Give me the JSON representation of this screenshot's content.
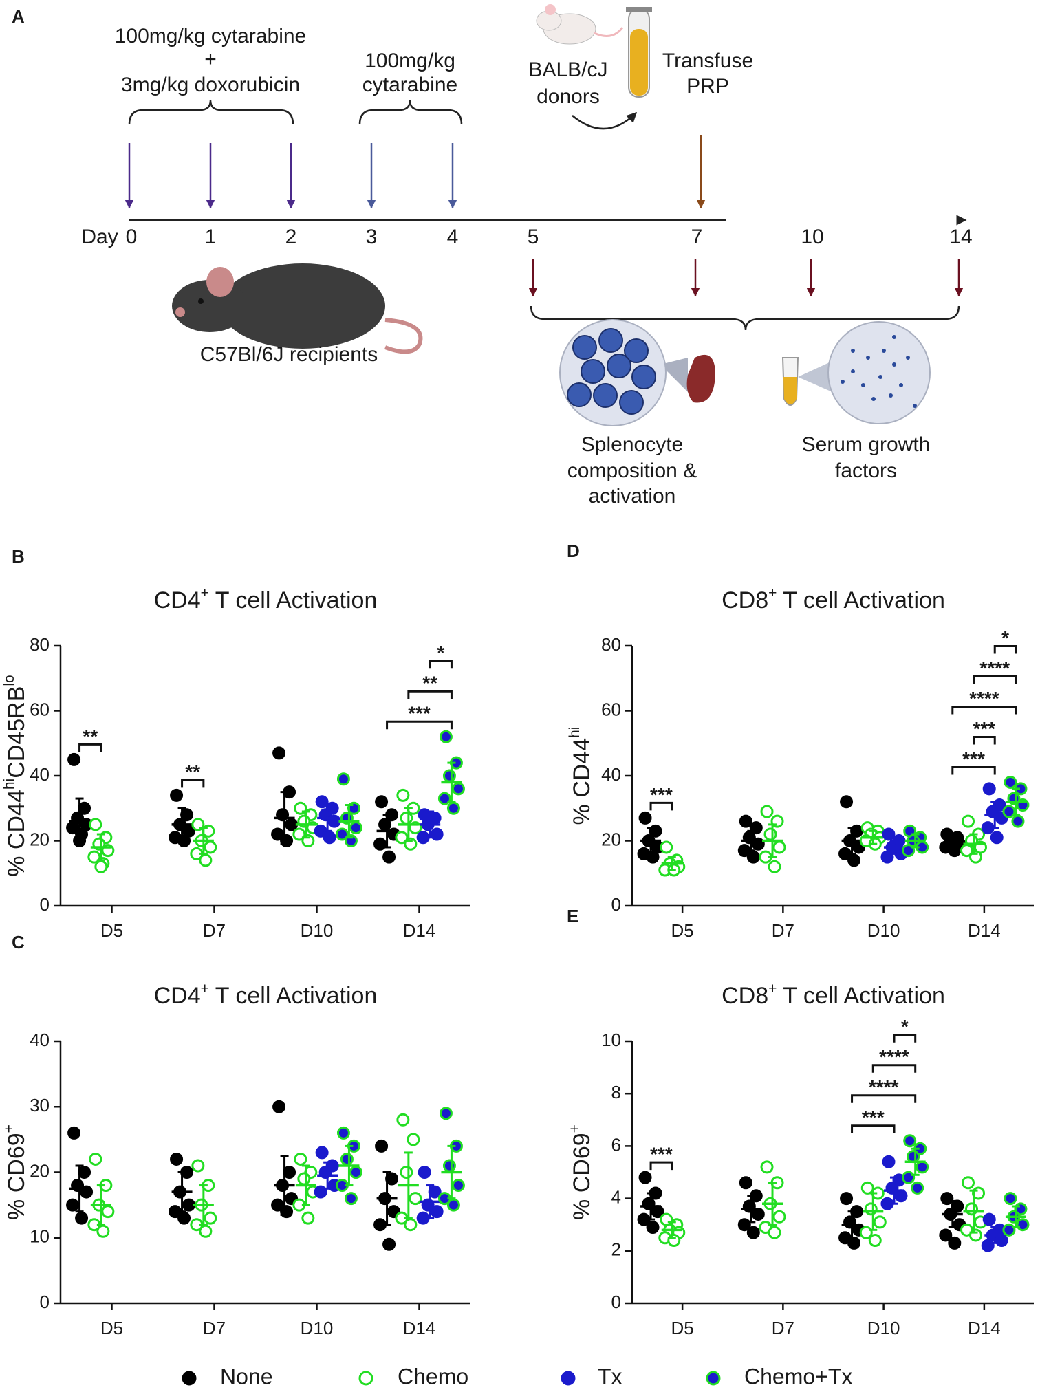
{
  "diagram": {
    "panel": "A",
    "dose1": [
      "100mg/kg cytarabine",
      "+",
      "3mg/kg doxorubicin"
    ],
    "dose2": [
      "100mg/kg",
      "cytarabine"
    ],
    "donor": [
      "BALB/cJ",
      "donors"
    ],
    "transfuse": [
      "Transfuse",
      "PRP"
    ],
    "day_label": "Day",
    "days": [
      0,
      1,
      2,
      3,
      4,
      5,
      7,
      10,
      14
    ],
    "recipients": "C57Bl/6J recipients",
    "readout1": [
      "Splenocyte",
      "composition &",
      "activation"
    ],
    "readout2": [
      "Serum growth",
      "factors"
    ]
  },
  "legend": [
    {
      "name": "None",
      "color": "#000000",
      "fill": "#000000"
    },
    {
      "name": "Chemo",
      "color": "#22dd22",
      "fill": "#ffffff"
    },
    {
      "name": "Tx",
      "color": "#1a1acc",
      "fill": "#1a1acc"
    },
    {
      "name": "Chemo+Tx",
      "color": "#22dd22",
      "fill": "#1a1acc"
    }
  ],
  "chart_data": [
    {
      "type": "dot",
      "panel": "B",
      "title": [
        {
          "text": "CD4"
        },
        {
          "text": "+",
          "sup": true
        },
        {
          "text": " T cell Activation"
        }
      ],
      "ylabel": [
        {
          "text": "% CD44"
        },
        {
          "text": "hi",
          "sup": true
        },
        {
          "text": "CD45RB"
        },
        {
          "text": "lo",
          "sup": true
        }
      ],
      "categories": [
        "D5",
        "D7",
        "D10",
        "D14"
      ],
      "ylim": [
        0,
        80
      ],
      "yticks": [
        0,
        20,
        40,
        60,
        80
      ],
      "series": [
        {
          "values": [
            26,
            25,
            27,
            23
          ],
          "errors": [
            7,
            5,
            8,
            5
          ],
          "points": [
            [
              45,
              30,
              27,
              25,
              24,
              22,
              20
            ],
            [
              34,
              28,
              25,
              23,
              21,
              20
            ],
            [
              47,
              35,
              28,
              25,
              22,
              20
            ],
            [
              32,
              28,
              25,
              22,
              19,
              15
            ]
          ]
        },
        {
          "values": [
            18,
            20,
            25,
            25
          ],
          "errors": [
            4,
            4,
            4,
            5
          ],
          "points": [
            [
              25,
              21,
              19,
              17,
              15,
              13,
              12
            ],
            [
              25,
              23,
              20,
              18,
              16,
              14
            ],
            [
              30,
              28,
              26,
              24,
              22,
              20
            ],
            [
              34,
              30,
              27,
              24,
              21,
              19
            ]
          ]
        },
        {
          "values": [
            null,
            null,
            27,
            25
          ],
          "errors": [
            null,
            null,
            4,
            4
          ],
          "points": [
            null,
            null,
            [
              32,
              30,
              28,
              26,
              23,
              21
            ],
            [
              28,
              27,
              25,
              22,
              21
            ]
          ]
        },
        {
          "values": [
            null,
            null,
            26,
            38
          ],
          "errors": [
            null,
            null,
            5,
            6
          ],
          "points": [
            null,
            null,
            [
              39,
              30,
              27,
              24,
              22,
              20
            ],
            [
              52,
              44,
              40,
              36,
              33,
              30
            ]
          ]
        }
      ],
      "brackets": [
        {
          "category": 0,
          "from": 0,
          "to": 1,
          "label": "**"
        },
        {
          "category": 1,
          "from": 0,
          "to": 1,
          "label": "**"
        },
        {
          "category": 3,
          "from": 0,
          "to": 3,
          "label": "***"
        },
        {
          "category": 3,
          "from": 1,
          "to": 3,
          "label": "**"
        },
        {
          "category": 3,
          "from": 2,
          "to": 3,
          "label": "*"
        }
      ]
    },
    {
      "type": "dot",
      "panel": "C",
      "title": [
        {
          "text": "CD4"
        },
        {
          "text": "+",
          "sup": true
        },
        {
          "text": " T cell Activation"
        }
      ],
      "ylabel": [
        {
          "text": "% CD69"
        },
        {
          "text": "+",
          "sup": true
        }
      ],
      "categories": [
        "D5",
        "D7",
        "D10",
        "D14"
      ],
      "ylim": [
        0,
        40
      ],
      "yticks": [
        0,
        10,
        20,
        30,
        40
      ],
      "series": [
        {
          "values": [
            17.5,
            17,
            18,
            16
          ],
          "errors": [
            3.5,
            3,
            4.5,
            4
          ],
          "points": [
            [
              26,
              20,
              18,
              17,
              15,
              13
            ],
            [
              22,
              20,
              17,
              15,
              14,
              13
            ],
            [
              30,
              20,
              18,
              16,
              15,
              14
            ],
            [
              24,
              19,
              16,
              14,
              12,
              9
            ]
          ]
        },
        {
          "values": [
            15,
            15,
            18,
            18
          ],
          "errors": [
            3,
            3,
            3,
            5
          ],
          "points": [
            [
              22,
              18,
              15,
              14,
              12,
              11
            ],
            [
              21,
              18,
              15,
              13,
              12,
              11
            ],
            [
              22,
              20,
              19,
              17,
              15,
              13
            ],
            [
              28,
              25,
              20,
              16,
              13,
              12
            ]
          ]
        },
        {
          "values": [
            null,
            null,
            19.5,
            15.5
          ],
          "errors": [
            null,
            null,
            2,
            2.5
          ],
          "points": [
            null,
            null,
            [
              23,
              21,
              20,
              18,
              17
            ],
            [
              20,
              17,
              15,
              14,
              13
            ]
          ]
        },
        {
          "values": [
            null,
            null,
            21,
            20
          ],
          "errors": [
            null,
            null,
            3,
            4
          ],
          "points": [
            null,
            null,
            [
              26,
              24,
              22,
              20,
              18,
              16
            ],
            [
              29,
              24,
              21,
              18,
              16,
              15
            ]
          ]
        }
      ],
      "brackets": []
    },
    {
      "type": "dot",
      "panel": "D",
      "title": [
        {
          "text": "CD8"
        },
        {
          "text": "+",
          "sup": true
        },
        {
          "text": " T cell Activation"
        }
      ],
      "ylabel": [
        {
          "text": "% CD44"
        },
        {
          "text": "hi",
          "sup": true
        }
      ],
      "categories": [
        "D5",
        "D7",
        "D10",
        "D14"
      ],
      "ylim": [
        0,
        80
      ],
      "yticks": [
        0,
        20,
        40,
        60,
        80
      ],
      "series": [
        {
          "values": [
            20,
            20,
            20,
            19
          ],
          "errors": [
            4,
            3,
            4,
            2
          ],
          "points": [
            [
              27,
              23,
              20,
              18,
              16,
              15
            ],
            [
              26,
              24,
              21,
              19,
              17,
              15
            ],
            [
              32,
              23,
              20,
              18,
              16,
              14
            ],
            [
              22,
              21,
              20,
              19,
              18,
              17
            ]
          ]
        },
        {
          "values": [
            13,
            20,
            21,
            19
          ],
          "errors": [
            2,
            5,
            2,
            3
          ],
          "points": [
            [
              18,
              14,
              13,
              12,
              11,
              11
            ],
            [
              29,
              26,
              22,
              18,
              15,
              12
            ],
            [
              24,
              23,
              22,
              21,
              20,
              19
            ],
            [
              26,
              22,
              20,
              18,
              17,
              15
            ]
          ]
        },
        {
          "values": [
            null,
            null,
            18,
            28
          ],
          "errors": [
            null,
            null,
            2,
            4
          ],
          "points": [
            null,
            null,
            [
              22,
              20,
              18,
              16,
              15
            ],
            [
              36,
              31,
              29,
              27,
              24,
              21
            ]
          ]
        },
        {
          "values": [
            null,
            null,
            20,
            32
          ],
          "errors": [
            null,
            null,
            2,
            4
          ],
          "points": [
            null,
            null,
            [
              23,
              21,
              20,
              18,
              17
            ],
            [
              38,
              36,
              33,
              31,
              29,
              26
            ]
          ]
        }
      ],
      "brackets": [
        {
          "category": 0,
          "from": 0,
          "to": 1,
          "label": "***"
        },
        {
          "category": 3,
          "from": 0,
          "to": 2,
          "label": "***"
        },
        {
          "category": 3,
          "from": 1,
          "to": 2,
          "label": "***"
        },
        {
          "category": 3,
          "from": 0,
          "to": 3,
          "label": "****"
        },
        {
          "category": 3,
          "from": 1,
          "to": 3,
          "label": "****"
        },
        {
          "category": 3,
          "from": 2,
          "to": 3,
          "label": "*"
        }
      ]
    },
    {
      "type": "dot",
      "panel": "E",
      "title": [
        {
          "text": "CD8"
        },
        {
          "text": "+",
          "sup": true
        },
        {
          "text": " T cell Activation"
        }
      ],
      "ylabel": [
        {
          "text": "% CD69"
        },
        {
          "text": "+",
          "sup": true
        }
      ],
      "categories": [
        "D5",
        "D7",
        "D10",
        "D14"
      ],
      "ylim": [
        0,
        10
      ],
      "yticks": [
        0,
        2,
        4,
        6,
        8,
        10
      ],
      "series": [
        {
          "values": [
            3.7,
            3.6,
            3.0,
            3.4
          ],
          "errors": [
            0.5,
            0.5,
            0.5,
            0.5
          ],
          "points": [
            [
              4.8,
              4.2,
              3.8,
              3.5,
              3.2,
              2.9
            ],
            [
              4.6,
              4.1,
              3.7,
              3.4,
              3.0,
              2.7
            ],
            [
              4.0,
              3.5,
              3.1,
              2.8,
              2.5,
              2.3
            ],
            [
              4.0,
              3.7,
              3.4,
              3.0,
              2.6,
              2.3
            ]
          ]
        },
        {
          "values": [
            2.8,
            3.8,
            3.5,
            3.5
          ],
          "errors": [
            0.3,
            0.8,
            0.7,
            0.8
          ],
          "points": [
            [
              3.2,
              3.0,
              2.8,
              2.7,
              2.5,
              2.4
            ],
            [
              5.2,
              4.6,
              3.8,
              3.3,
              2.9,
              2.7
            ],
            [
              4.4,
              4.2,
              3.6,
              3.1,
              2.7,
              2.4
            ],
            [
              4.6,
              4.2,
              3.6,
              3.1,
              2.8,
              2.6
            ]
          ]
        },
        {
          "values": [
            null,
            null,
            4.3,
            2.6
          ],
          "errors": [
            null,
            null,
            0.5,
            0.3
          ],
          "points": [
            null,
            null,
            [
              5.4,
              4.7,
              4.4,
              4.1,
              3.8
            ],
            [
              3.2,
              2.8,
              2.6,
              2.4,
              2.2
            ]
          ]
        },
        {
          "values": [
            null,
            null,
            5.4,
            3.3
          ],
          "errors": [
            null,
            null,
            0.5,
            0.4
          ],
          "points": [
            null,
            null,
            [
              6.2,
              5.9,
              5.6,
              5.2,
              4.8,
              4.4
            ],
            [
              4.0,
              3.6,
              3.3,
              3.0,
              2.8
            ]
          ]
        }
      ],
      "brackets": [
        {
          "category": 0,
          "from": 0,
          "to": 1,
          "label": "***"
        },
        {
          "category": 2,
          "from": 0,
          "to": 2,
          "label": "***"
        },
        {
          "category": 2,
          "from": 0,
          "to": 3,
          "label": "****"
        },
        {
          "category": 2,
          "from": 1,
          "to": 3,
          "label": "****"
        },
        {
          "category": 2,
          "from": 2,
          "to": 3,
          "label": "*"
        }
      ]
    }
  ]
}
